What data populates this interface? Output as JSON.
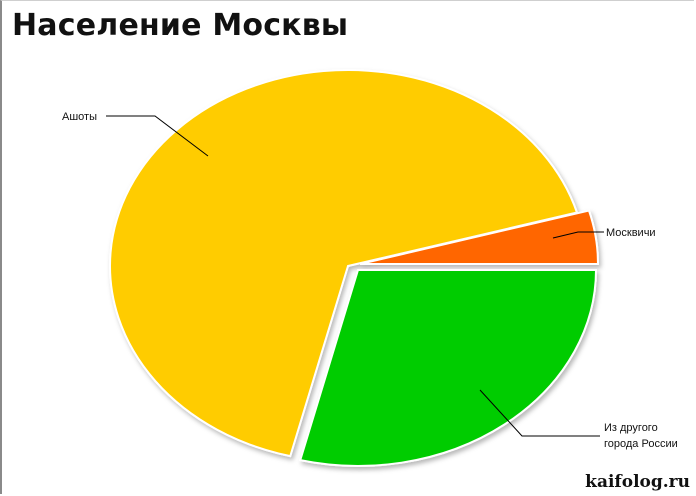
{
  "chart_data": {
    "type": "pie",
    "title": "Население Москвы",
    "slices": [
      {
        "label": "Ашоты",
        "value": 66.7,
        "color": "#FFCC00"
      },
      {
        "label": "Москвичи",
        "value": 4.4,
        "color": "#FF6600"
      },
      {
        "label": "Из другого города России",
        "value": 28.9,
        "color": "#00CC00"
      }
    ],
    "labels": {
      "ashoty": "Ашоты",
      "moskvichi": "Москвичи",
      "other_line1": "Из другого",
      "other_line2": "города России"
    },
    "legend": "none"
  },
  "watermark": "kaifolog.ru"
}
